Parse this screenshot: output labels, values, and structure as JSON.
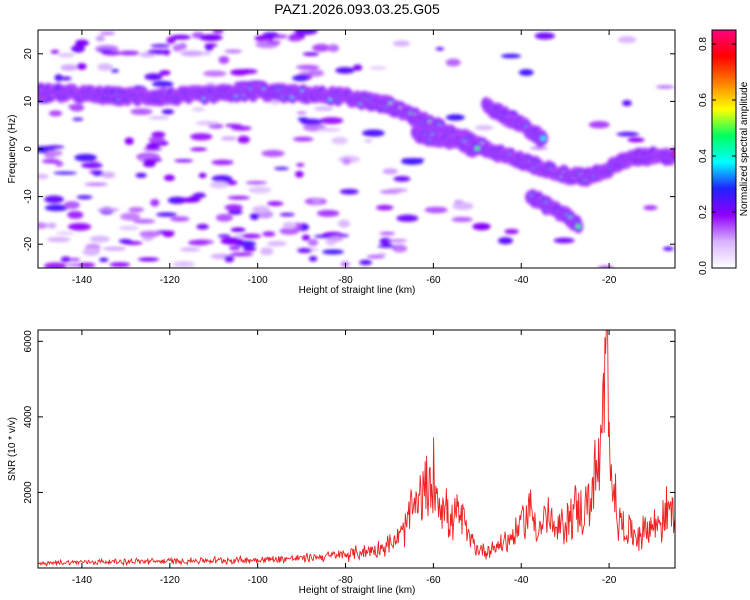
{
  "chart_data": [
    {
      "type": "heatmap",
      "title": "PAZ1.2026.093.03.25.G05",
      "xlabel": "Height of straight line (km)",
      "ylabel": "Frequency (Hz)",
      "xlim": [
        -150,
        -5
      ],
      "ylim": [
        -25,
        25
      ],
      "xticks": [
        -140,
        -120,
        -100,
        -80,
        -60,
        -40,
        -20
      ],
      "yticks": [
        -20,
        -10,
        0,
        10,
        20
      ],
      "colorbar": {
        "label": "Normalized spectral amplitude",
        "range": [
          0.0,
          0.85
        ],
        "ticks": [
          0.0,
          0.2,
          0.4,
          0.6,
          0.8
        ],
        "tick_labels": [
          "0.0",
          "0.2",
          "0.4",
          "0.6",
          "0.8"
        ],
        "colormap": [
          "#ffffff",
          "#d9b3ff",
          "#9000ff",
          "#2020ff",
          "#00ffff",
          "#00ff60",
          "#ffff00",
          "#ff8000",
          "#ff0000",
          "#ff0080"
        ]
      },
      "ridges": [
        {
          "x": [
            -150,
            -140,
            -130,
            -120,
            -110,
            -100,
            -90,
            -80,
            -75,
            -70,
            -65,
            -60,
            -55,
            -50,
            -45,
            -40,
            -35,
            -30,
            -25,
            -20,
            -15,
            -10,
            -5
          ],
          "y": [
            12,
            11.5,
            11,
            11,
            11.5,
            12,
            11.5,
            11,
            10,
            9,
            7,
            5,
            3,
            1,
            -1,
            -2.5,
            -4,
            -5.5,
            -6,
            -4,
            -2,
            -1.5,
            -1.5
          ]
        },
        {
          "x": [
            -64,
            -60,
            -55,
            -50
          ],
          "y": [
            3,
            2.5,
            1.5,
            0
          ]
        },
        {
          "x": [
            -48,
            -45,
            -42,
            -38,
            -35
          ],
          "y": [
            9,
            7.5,
            6,
            4,
            2
          ]
        },
        {
          "x": [
            -38,
            -34,
            -30,
            -27
          ],
          "y": [
            -10,
            -12,
            -14,
            -16
          ]
        }
      ]
    },
    {
      "type": "line",
      "title": "",
      "xlabel": "Height of straight line (km)",
      "ylabel": "SNR (10 * v/v)",
      "xlim": [
        -150,
        -5
      ],
      "ylim": [
        0,
        6300
      ],
      "xticks": [
        -140,
        -120,
        -100,
        -80,
        -60,
        -40,
        -20
      ],
      "yticks": [
        2000,
        4000,
        6000
      ],
      "line_color": "#ee2222",
      "series": [
        {
          "x": [
            -150,
            -140,
            -130,
            -120,
            -110,
            -100,
            -90,
            -85,
            -80,
            -75,
            -70,
            -67,
            -65,
            -63,
            -61,
            -60,
            -58,
            -56,
            -54,
            -52,
            -50,
            -48,
            -46,
            -44,
            -42,
            -40,
            -38,
            -36,
            -34,
            -32,
            -30,
            -28,
            -26,
            -24,
            -22,
            -21,
            -20.5,
            -20,
            -19,
            -18,
            -16,
            -14,
            -12,
            -10,
            -8,
            -6,
            -5
          ],
          "y": [
            120,
            160,
            170,
            180,
            200,
            220,
            260,
            300,
            350,
            450,
            600,
            900,
            1500,
            1800,
            2100,
            2300,
            1700,
            1200,
            1500,
            800,
            500,
            450,
            550,
            700,
            800,
            1200,
            1600,
            1000,
            1400,
            900,
            1200,
            1600,
            1400,
            2000,
            2800,
            4200,
            6300,
            3500,
            2200,
            1300,
            1000,
            900,
            1000,
            1100,
            1300,
            1600,
            1300
          ]
        }
      ]
    }
  ]
}
